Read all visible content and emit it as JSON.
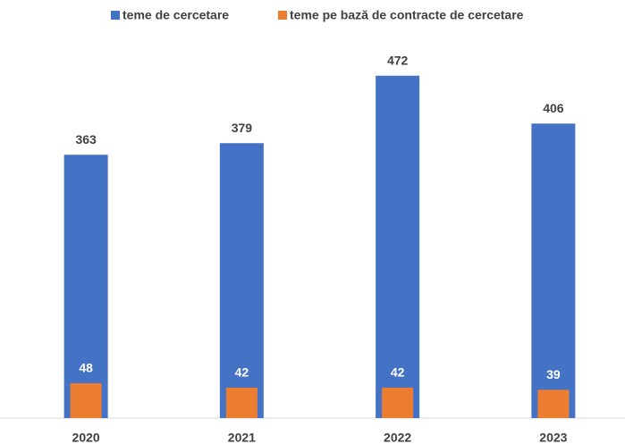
{
  "chart_data": {
    "type": "bar",
    "categories": [
      "2020",
      "2021",
      "2022",
      "2023"
    ],
    "series": [
      {
        "name": "teme de cercetare",
        "color": "#4472c4",
        "values": [
          363,
          379,
          472,
          406
        ]
      },
      {
        "name": "teme pe bază de contracte de cercetare",
        "color": "#ed7d31",
        "values": [
          48,
          42,
          42,
          39
        ]
      }
    ],
    "ylim": [
      0,
      500
    ],
    "legend": "top"
  }
}
